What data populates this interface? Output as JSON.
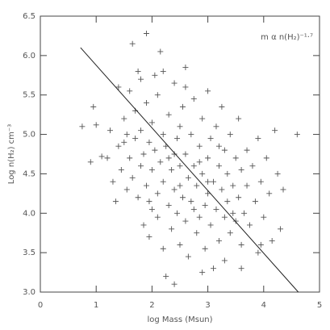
{
  "chart_data": {
    "type": "scatter",
    "x_label": "log Mass (Msun)",
    "y_label": "Log n(H₂) cm⁻³",
    "annotation": "m α n(H₂)⁻¹·⁷",
    "xlim": [
      0,
      5
    ],
    "xticks": [
      0,
      1,
      2,
      3,
      4,
      5
    ],
    "ylim": [
      3,
      6.5
    ],
    "yticks": [
      {
        "value": 3,
        "label": "3.0"
      },
      3.5,
      {
        "value": 4,
        "label": "4.0"
      },
      4.5,
      {
        "value": 5,
        "label": "5.0"
      },
      5.5,
      {
        "value": 6,
        "label": "6.0"
      },
      6.5
    ],
    "color": "#555555",
    "fit_line": {
      "color": "#222222",
      "x": [
        0.72,
        4.62
      ],
      "y": [
        6.1,
        3.0
      ]
    },
    "x": [
      0.75,
      0.9,
      0.95,
      1.0,
      1.1,
      1.2,
      1.25,
      1.3,
      1.35,
      1.4,
      1.4,
      1.45,
      1.5,
      1.5,
      1.55,
      1.6,
      1.6,
      1.65,
      1.65,
      1.7,
      1.7,
      1.75,
      1.75,
      1.8,
      1.8,
      1.85,
      1.85,
      1.9,
      1.9,
      1.9,
      1.95,
      1.95,
      2.0,
      2.0,
      2.0,
      2.05,
      2.05,
      2.1,
      2.1,
      2.1,
      2.15,
      2.15,
      2.2,
      2.2,
      2.2,
      2.25,
      2.25,
      2.3,
      2.3,
      2.35,
      2.35,
      2.4,
      2.4,
      2.4,
      2.45,
      2.45,
      2.5,
      2.5,
      2.5,
      2.55,
      2.55,
      2.6,
      2.6,
      2.6,
      2.65,
      2.65,
      2.7,
      2.7,
      2.75,
      2.75,
      2.8,
      2.8,
      2.85,
      2.85,
      2.9,
      2.9,
      2.95,
      2.95,
      3.0,
      3.0,
      3.0,
      3.05,
      3.05,
      3.1,
      3.1,
      3.15,
      3.15,
      3.2,
      3.2,
      3.25,
      3.25,
      3.3,
      3.3,
      3.35,
      3.35,
      3.4,
      3.4,
      3.45,
      3.5,
      3.5,
      3.55,
      3.55,
      3.6,
      3.6,
      3.65,
      3.7,
      3.7,
      3.75,
      3.8,
      3.85,
      3.9,
      3.9,
      3.95,
      4.0,
      4.05,
      4.1,
      4.15,
      4.2,
      4.25,
      4.3,
      4.35,
      4.6,
      1.55,
      1.95,
      2.3,
      2.5,
      2.75,
      3.0,
      3.2,
      2.2,
      2.6,
      1.8,
      2.9,
      3.3,
      3.6,
      3.95,
      2.4,
      2.85,
      3.45
    ],
    "y": [
      5.1,
      4.65,
      5.35,
      5.12,
      4.72,
      4.7,
      5.05,
      4.4,
      4.15,
      4.85,
      5.6,
      4.55,
      5.2,
      4.9,
      4.3,
      5.55,
      4.7,
      6.15,
      4.45,
      5.3,
      4.95,
      4.2,
      5.8,
      4.6,
      5.05,
      3.85,
      4.75,
      6.28,
      5.4,
      4.35,
      4.9,
      3.7,
      5.15,
      4.55,
      4.05,
      5.75,
      4.8,
      4.25,
      3.95,
      5.5,
      4.65,
      6.05,
      5.0,
      4.4,
      3.55,
      4.85,
      3.2,
      5.25,
      4.1,
      4.55,
      3.8,
      5.65,
      4.3,
      3.1,
      4.95,
      4.0,
      5.1,
      4.6,
      3.6,
      4.2,
      5.35,
      4.75,
      3.9,
      5.85,
      4.45,
      3.45,
      5.0,
      4.15,
      4.6,
      5.45,
      3.75,
      4.35,
      4.85,
      3.95,
      5.2,
      4.5,
      4.1,
      3.55,
      4.7,
      5.55,
      4.25,
      3.85,
      4.95,
      4.4,
      3.3,
      5.1,
      4.05,
      4.6,
      3.65,
      4.3,
      5.35,
      4.8,
      3.95,
      4.15,
      4.5,
      5.0,
      3.75,
      4.35,
      4.7,
      3.9,
      5.2,
      4.2,
      4.55,
      3.6,
      4.0,
      4.8,
      4.35,
      3.85,
      4.6,
      4.15,
      4.95,
      3.5,
      4.4,
      3.95,
      4.7,
      4.25,
      3.65,
      5.05,
      4.5,
      3.8,
      4.3,
      5.0,
      5.0,
      4.15,
      4.7,
      4.35,
      4.05,
      4.4,
      4.85,
      5.8,
      5.6,
      5.7,
      3.25,
      3.4,
      3.3,
      3.6,
      4.75,
      4.65,
      4.0
    ]
  }
}
